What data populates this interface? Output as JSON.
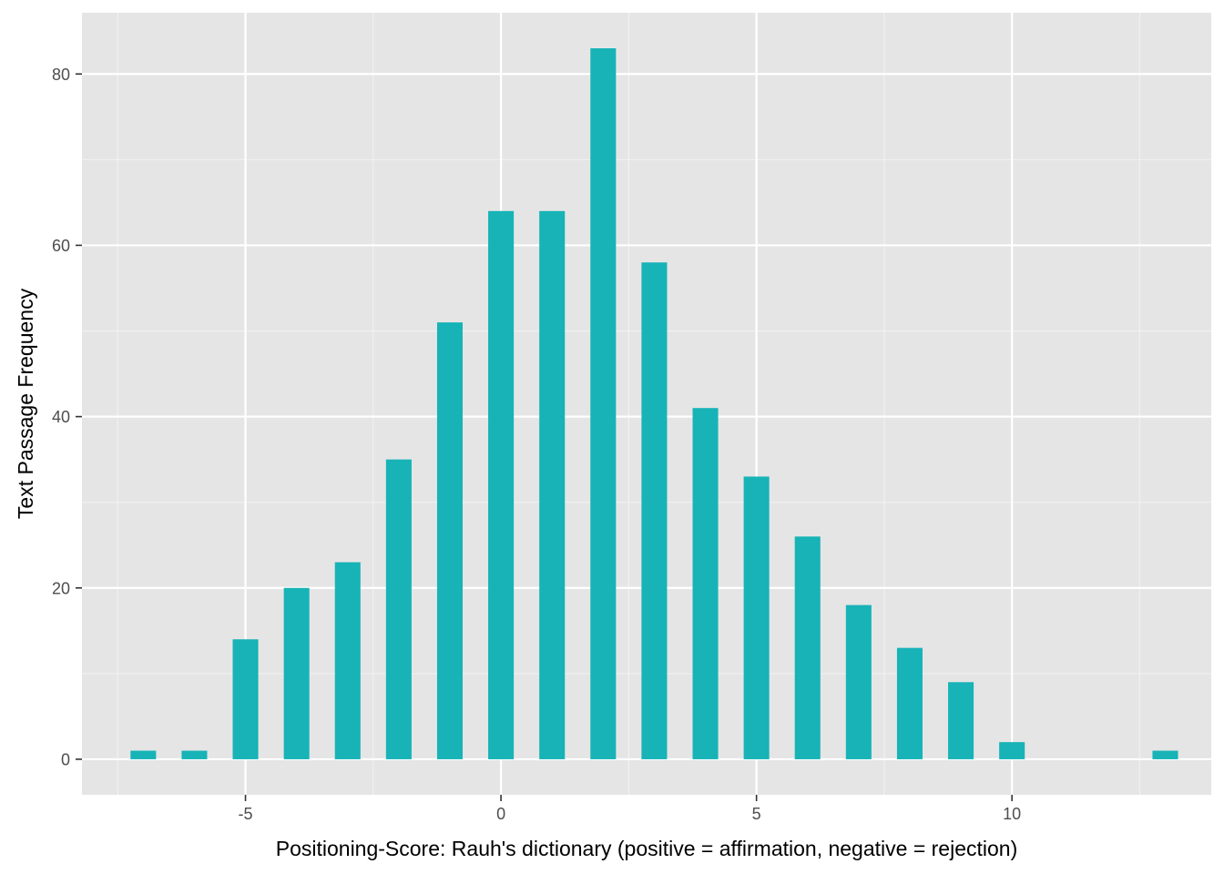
{
  "chart_data": {
    "type": "bar",
    "title": "",
    "xlabel": "Positioning-Score: Rauh's dictionary (positive = affirmation, negative = rejection)",
    "ylabel": "Text Passage Frequency",
    "x": [
      -7,
      -6,
      -5,
      -4,
      -3,
      -2,
      -1,
      0,
      1,
      2,
      3,
      4,
      5,
      6,
      7,
      8,
      9,
      10,
      13
    ],
    "values": [
      1,
      1,
      14,
      20,
      23,
      35,
      51,
      64,
      64,
      83,
      58,
      41,
      33,
      26,
      18,
      13,
      9,
      2,
      1
    ],
    "xlim": [
      -8.2,
      13.9
    ],
    "ylim": [
      -4.15,
      87.15
    ],
    "x_ticks": [
      {
        "value": -5,
        "label": "-5"
      },
      {
        "value": 0,
        "label": "0"
      },
      {
        "value": 5,
        "label": "5"
      },
      {
        "value": 10,
        "label": "10"
      }
    ],
    "y_ticks": [
      {
        "value": 0,
        "label": "0"
      },
      {
        "value": 20,
        "label": "20"
      },
      {
        "value": 40,
        "label": "40"
      },
      {
        "value": 60,
        "label": "60"
      },
      {
        "value": 80,
        "label": "80"
      }
    ],
    "bar_width": 0.5,
    "grid": true,
    "legend": "none",
    "colors": {
      "bar": "#17B3B7",
      "panel": "#E5E5E5",
      "grid_major": "#FFFFFF",
      "grid_minor": "#F2F2F2",
      "tick_text": "#4D4D4D",
      "tick_mark": "#333333"
    }
  }
}
